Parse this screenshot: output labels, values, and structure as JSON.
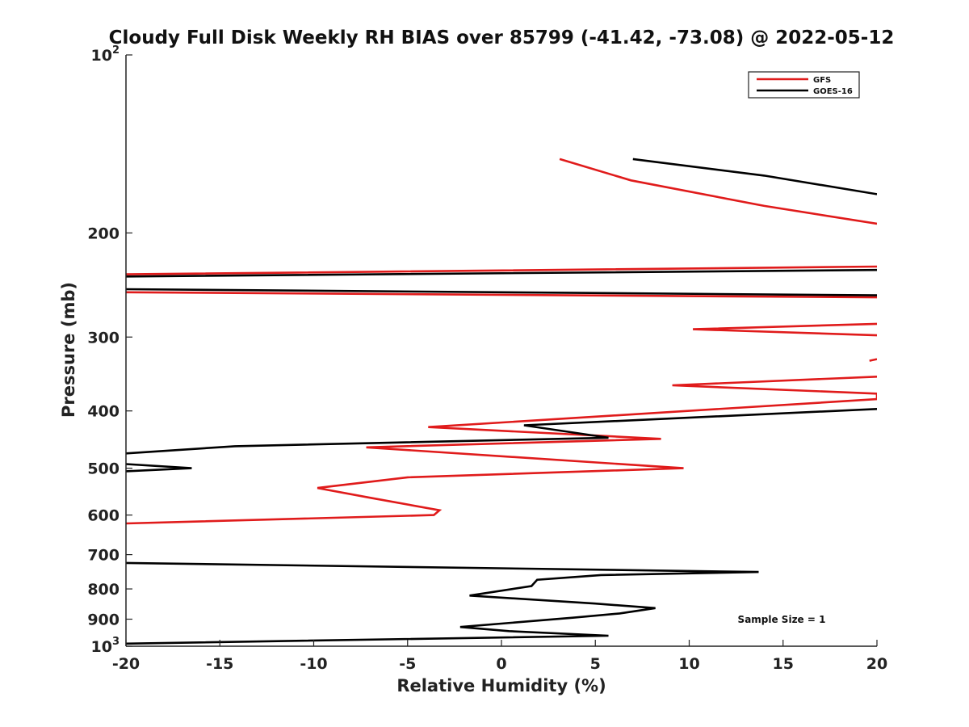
{
  "chart_data": {
    "type": "line",
    "title": "Cloudy Full Disk Weekly RH BIAS over 85799 (-41.42, -73.08) @ 2022-05-12",
    "xlabel": "Relative Humidity (%)",
    "ylabel": "Pressure (mb)",
    "xlim": [
      -20,
      20
    ],
    "ylim": [
      100,
      1000
    ],
    "yscale": "log",
    "y_reversed": true,
    "x_ticks": [
      "-20",
      "-15",
      "-10",
      "-5",
      "0",
      "5",
      "10",
      "15",
      "20"
    ],
    "y_ticks": [
      {
        "value": 100,
        "label": "10",
        "sup": "2"
      },
      {
        "value": 200,
        "label": "200"
      },
      {
        "value": 300,
        "label": "300"
      },
      {
        "value": 400,
        "label": "400"
      },
      {
        "value": 500,
        "label": "500"
      },
      {
        "value": 600,
        "label": "600"
      },
      {
        "value": 700,
        "label": "700"
      },
      {
        "value": 800,
        "label": "800"
      },
      {
        "value": 900,
        "label": "900"
      },
      {
        "value": 1000,
        "label": "10",
        "sup": "3"
      }
    ],
    "legend_position": "top-right",
    "grid": false,
    "annotation": "Sample Size = 1",
    "series": [
      {
        "name": "GFS",
        "color": "#e01b1b",
        "points": [
          [
            3.1,
            150
          ],
          [
            6.9,
            163
          ],
          [
            14.0,
            180
          ],
          [
            20.0,
            193
          ],
          [
            null,
            null
          ],
          [
            20.0,
            228
          ],
          [
            -20.0,
            235
          ],
          [
            null,
            null
          ],
          [
            -20.0,
            252
          ],
          [
            20.0,
            257
          ],
          [
            null,
            null
          ],
          [
            20.0,
            285
          ],
          [
            10.2,
            291
          ],
          [
            20.0,
            298
          ],
          [
            null,
            null
          ],
          [
            20.0,
            327
          ],
          [
            19.6,
            329
          ],
          [
            null,
            null
          ],
          [
            20.0,
            350
          ],
          [
            9.1,
            362
          ],
          [
            20.0,
            374
          ],
          [
            20.0,
            382
          ],
          [
            -3.9,
            426
          ],
          [
            8.5,
            446
          ],
          [
            -7.2,
            461
          ],
          [
            9.7,
            500
          ],
          [
            -5.0,
            518
          ],
          [
            -9.8,
            540
          ],
          [
            -7.0,
            561
          ],
          [
            -3.3,
            589
          ],
          [
            -3.6,
            600
          ],
          [
            -20.0,
            620
          ]
        ]
      },
      {
        "name": "GOES-16",
        "color": "#000000",
        "points": [
          [
            7.0,
            150
          ],
          [
            14.0,
            160
          ],
          [
            20.0,
            172
          ],
          [
            null,
            null
          ],
          [
            20.0,
            231
          ],
          [
            -20.0,
            237
          ],
          [
            null,
            null
          ],
          [
            -20.0,
            249
          ],
          [
            20.0,
            255
          ],
          [
            null,
            null
          ],
          [
            20.0,
            397
          ],
          [
            1.2,
            423
          ],
          [
            5.7,
            444
          ],
          [
            -14.2,
            459
          ],
          [
            -20.0,
            472
          ],
          [
            null,
            null
          ],
          [
            -20.0,
            492
          ],
          [
            -16.5,
            500
          ],
          [
            -20.0,
            506
          ],
          [
            null,
            null
          ],
          [
            -20.0,
            723
          ],
          [
            13.7,
            749
          ],
          [
            5.3,
            758
          ],
          [
            1.9,
            772
          ],
          [
            1.6,
            791
          ],
          [
            -1.7,
            821
          ],
          [
            5.0,
            847
          ],
          [
            8.2,
            862
          ],
          [
            6.3,
            880
          ],
          [
            3.8,
            895
          ],
          [
            -2.2,
            928
          ],
          [
            0.4,
            943
          ],
          [
            5.7,
            960
          ],
          [
            -20.0,
            990
          ]
        ]
      }
    ]
  }
}
